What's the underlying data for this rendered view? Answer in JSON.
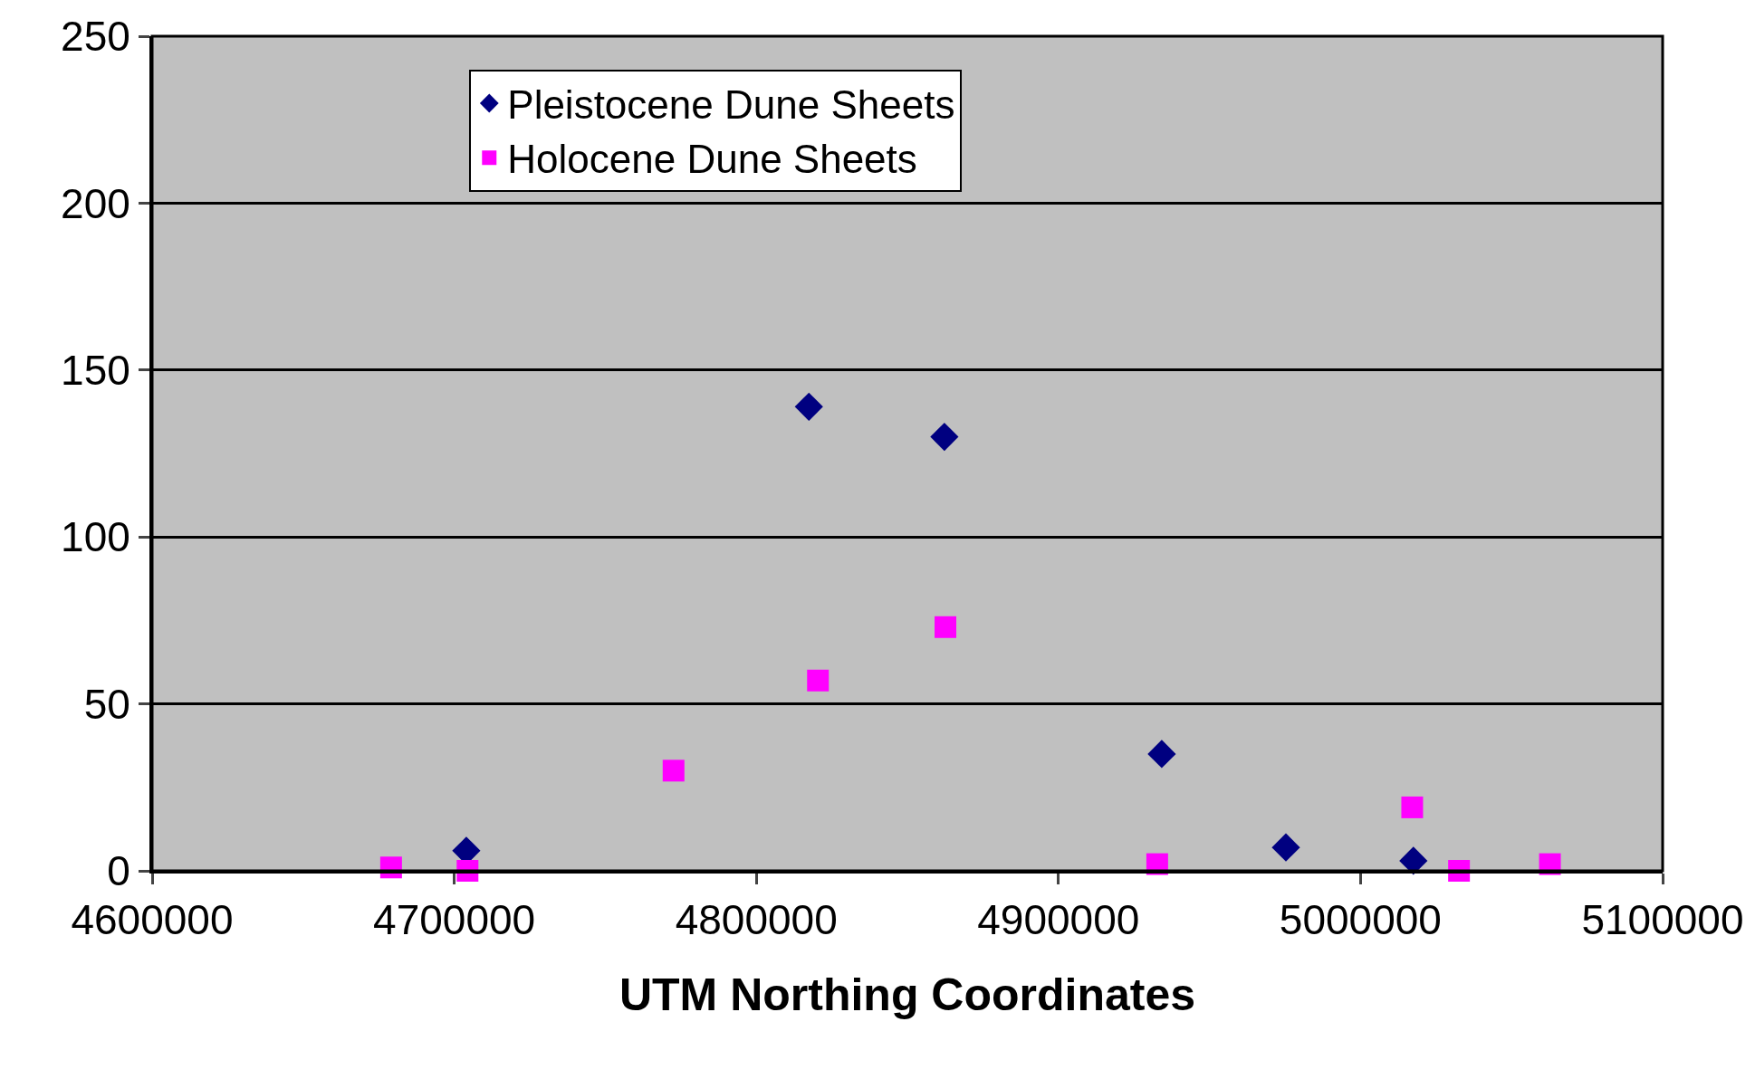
{
  "chart_data": {
    "type": "scatter",
    "xlabel": "UTM Northing Coordinates",
    "xlim": [
      4600000,
      5100000
    ],
    "xticks": [
      4600000,
      4700000,
      4800000,
      4900000,
      5000000,
      5100000
    ],
    "ylim": [
      0,
      250
    ],
    "yticks": [
      0,
      50,
      100,
      150,
      200,
      250
    ],
    "grid": "y",
    "legend": "top left",
    "series": [
      {
        "name": "Pleistocene Dune Sheets",
        "color": "#000080",
        "marker": "diamond",
        "x": [
          4704000,
          4817400,
          4862250,
          4934200,
          4975300,
          5017500
        ],
        "values": [
          6,
          139,
          130,
          35,
          7,
          3
        ]
      },
      {
        "name": "Holocene Dune Sheets",
        "color": "#ff00ff",
        "marker": "square",
        "x": [
          4679100,
          4704400,
          4772600,
          4820400,
          4862600,
          4932700,
          5017100,
          5032600,
          5062700
        ],
        "values": [
          1,
          0,
          30,
          57,
          73,
          2,
          19,
          0,
          2
        ]
      }
    ]
  }
}
